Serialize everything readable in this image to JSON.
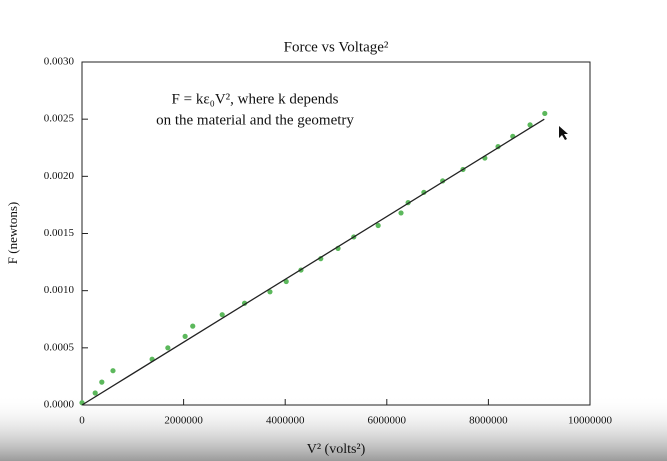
{
  "chart_data": {
    "type": "scatter",
    "title": "Force vs Voltage²",
    "xlabel": "V² (volts²)",
    "ylabel": "F (newtons)",
    "annotations": [
      "F = kε₀V², where k depends",
      "on the material and the geometry"
    ],
    "xlim": [
      0,
      10000000
    ],
    "ylim": [
      0,
      0.003
    ],
    "xticks": [
      0,
      2000000,
      4000000,
      6000000,
      8000000,
      10000000
    ],
    "yticks": [
      {
        "value": 0,
        "label": "0.0000"
      },
      {
        "value": 0.0005,
        "label": "0.0005"
      },
      {
        "value": 0.001,
        "label": "0.0010"
      },
      {
        "value": 0.0015,
        "label": "0.0015"
      },
      {
        "value": 0.002,
        "label": "0.0020"
      },
      {
        "value": 0.0025,
        "label": "0.0025"
      },
      {
        "value": 0.003,
        "label": "0.0030"
      }
    ],
    "series": [
      {
        "type": "scatter",
        "color": "#5cb85c",
        "x": [
          0,
          260000,
          390000,
          610000,
          1380000,
          1690000,
          2030000,
          2180000,
          2760000,
          3200000,
          3700000,
          4020000,
          4310000,
          4700000,
          5040000,
          5350000,
          5830000,
          6280000,
          6420000,
          6730000,
          7100000,
          7500000,
          7930000,
          8190000,
          8480000,
          8820000,
          9110000
        ],
        "values": [
          2e-05,
          0.000105,
          0.0002,
          0.0003,
          0.0004,
          0.0005,
          0.0006,
          0.00069,
          0.00079,
          0.00089,
          0.00099,
          0.00108,
          0.00118,
          0.00128,
          0.00137,
          0.00147,
          0.00157,
          0.00168,
          0.00177,
          0.00186,
          0.00196,
          0.00206,
          0.00216,
          0.00226,
          0.00235,
          0.00245,
          0.00255
        ]
      },
      {
        "type": "line",
        "color": "#222222",
        "x": [
          0,
          9100000
        ],
        "values": [
          0,
          0.0025
        ]
      }
    ]
  }
}
